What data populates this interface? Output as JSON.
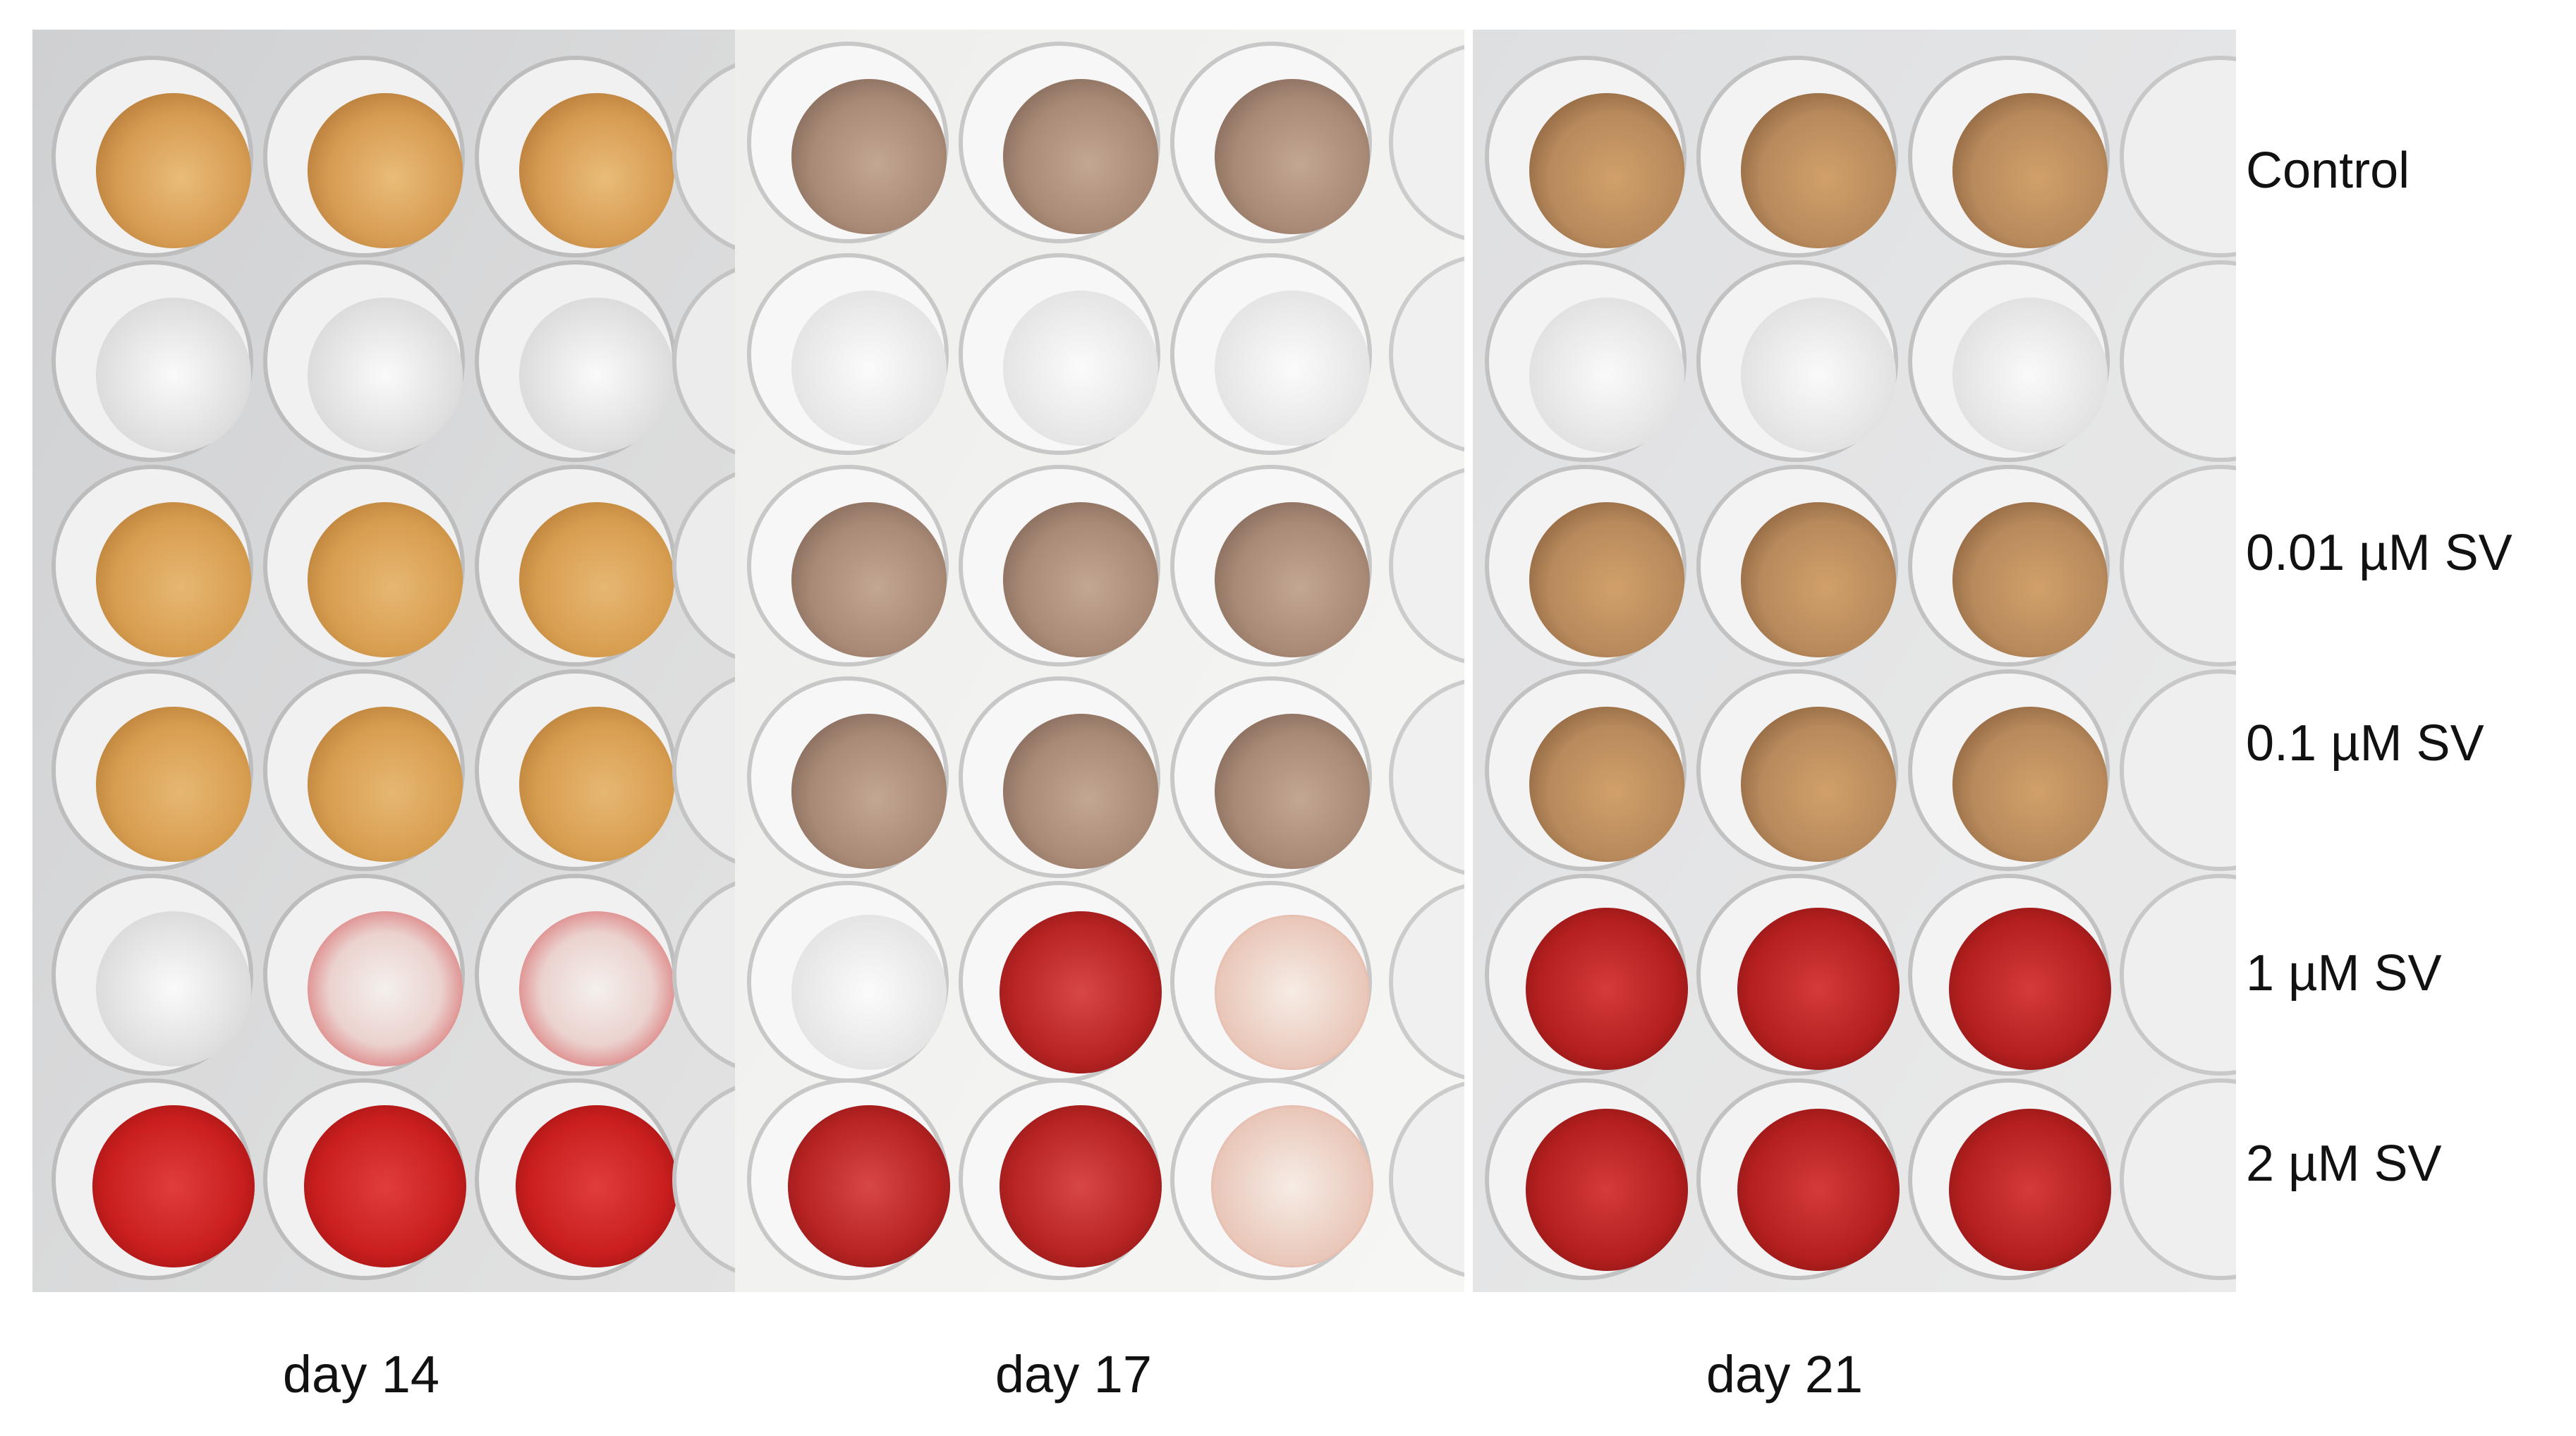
{
  "figure": {
    "row_labels": [
      "Control",
      "0.01 µM SV",
      "0.1 µM SV",
      "1 µM SV",
      "2 µM SV"
    ],
    "day_labels": [
      "day 14",
      "day 17",
      "day 21"
    ]
  },
  "photo": {
    "subject": "multi-well culture plates with stained wells",
    "colors": {
      "plate_background": "#d9d9d9",
      "empty_well": "#e8e8e8",
      "control_well_day14": "#d9a35a",
      "control_well_day17": "#a88a76",
      "control_well_day21": "#b88a5c",
      "stained_red_light": "#dd5a5a",
      "stained_red_strong": "#c41a1a",
      "stained_red_dark": "#9e1414"
    }
  }
}
